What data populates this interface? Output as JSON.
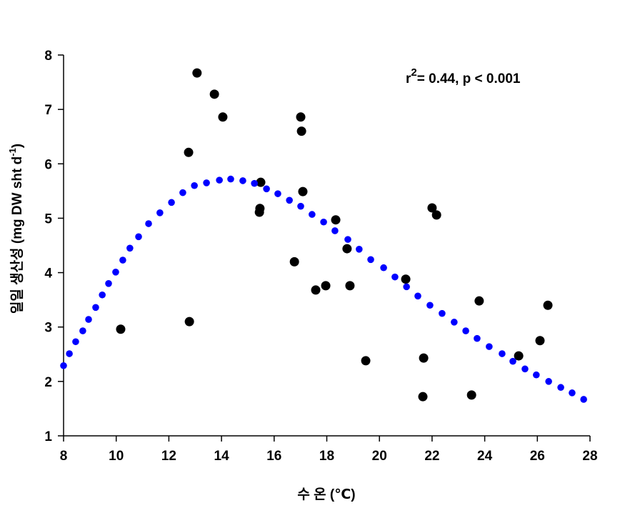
{
  "chart_data": {
    "type": "scatter",
    "x_label": "수 온 (℃)",
    "y_label": {
      "text": "일일 생산성 (mg DW sht d",
      "sup": "-1",
      "end": ")"
    },
    "annotation": {
      "text": "r",
      "sup": "2",
      "end": "= 0.44, p < 0.001"
    },
    "xlim": [
      8,
      28
    ],
    "xticks": [
      8,
      10,
      12,
      14,
      16,
      18,
      20,
      22,
      24,
      26,
      28
    ],
    "ylim": [
      1,
      8
    ],
    "yticks": [
      1,
      2,
      3,
      4,
      5,
      6,
      7,
      8
    ],
    "series": [
      {
        "color": "#000000",
        "x": [
          10.17,
          12.78,
          12.75,
          13.07,
          13.73,
          14.05,
          15.49,
          15.46,
          15.44,
          16.77,
          17.01,
          17.04,
          17.09,
          17.58,
          17.96,
          18.34,
          18.77,
          18.88,
          19.48,
          21.0,
          21.68,
          21.65,
          22.0,
          22.17,
          23.5,
          23.79,
          25.29,
          26.1,
          26.4
        ],
        "values": [
          2.96,
          3.1,
          6.21,
          7.67,
          7.28,
          6.86,
          5.66,
          5.18,
          5.11,
          4.2,
          6.86,
          6.6,
          5.49,
          3.68,
          3.76,
          4.97,
          4.44,
          3.76,
          2.38,
          3.88,
          2.43,
          1.72,
          5.19,
          5.06,
          1.75,
          3.48,
          2.47,
          2.75,
          3.4
        ]
      },
      {
        "color": "#0000ff",
        "x": [
          8.0,
          8.22,
          8.46,
          8.73,
          8.95,
          9.22,
          9.47,
          9.71,
          9.98,
          10.25,
          10.52,
          10.85,
          11.23,
          11.66,
          12.1,
          12.53,
          12.97,
          13.43,
          13.92,
          14.35,
          14.81,
          15.25,
          15.71,
          16.14,
          16.58,
          17.01,
          17.44,
          17.88,
          18.31,
          18.8,
          19.23,
          19.67,
          20.16,
          20.59,
          21.03,
          21.46,
          21.92,
          22.38,
          22.84,
          23.28,
          23.71,
          24.17,
          24.66,
          25.07,
          25.53,
          25.96,
          26.43,
          26.89,
          27.32,
          27.76
        ],
        "values": [
          2.29,
          2.51,
          2.73,
          2.93,
          3.14,
          3.36,
          3.59,
          3.8,
          4.01,
          4.23,
          4.45,
          4.66,
          4.9,
          5.1,
          5.29,
          5.47,
          5.6,
          5.65,
          5.7,
          5.72,
          5.69,
          5.64,
          5.54,
          5.45,
          5.33,
          5.22,
          5.07,
          4.93,
          4.77,
          4.61,
          4.43,
          4.24,
          4.09,
          3.92,
          3.74,
          3.57,
          3.4,
          3.25,
          3.09,
          2.93,
          2.79,
          2.64,
          2.51,
          2.37,
          2.23,
          2.12,
          2.0,
          1.89,
          1.79,
          1.67
        ]
      }
    ]
  }
}
